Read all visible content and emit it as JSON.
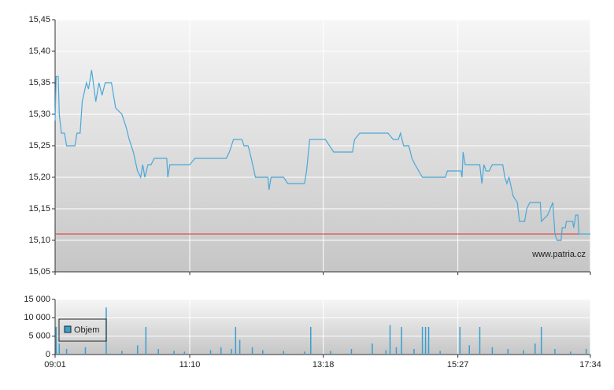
{
  "chart_data": [
    {
      "type": "line",
      "x": [
        "09:01",
        "09:02",
        "09:04",
        "09:05",
        "09:07",
        "09:10",
        "09:12",
        "09:20",
        "09:22",
        "09:25",
        "09:27",
        "09:31",
        "09:33",
        "09:36",
        "09:40",
        "09:43",
        "09:46",
        "09:49",
        "09:55",
        "09:59",
        "10:05",
        "10:09",
        "10:12",
        "10:16",
        "10:20",
        "10:23",
        "10:25",
        "10:27",
        "10:30",
        "10:33",
        "10:36",
        "10:48",
        "10:49",
        "10:51",
        "11:10",
        "11:15",
        "11:45",
        "11:48",
        "11:52",
        "12:00",
        "12:02",
        "12:06",
        "12:09",
        "12:13",
        "12:25",
        "12:26",
        "12:28",
        "12:40",
        "12:44",
        "13:00",
        "13:02",
        "13:05",
        "13:20",
        "13:28",
        "13:46",
        "13:48",
        "13:53",
        "14:20",
        "14:25",
        "14:30",
        "14:32",
        "14:35",
        "14:40",
        "14:43",
        "14:46",
        "14:53",
        "15:15",
        "15:17",
        "15:30",
        "15:31",
        "15:32",
        "15:34",
        "15:48",
        "15:50",
        "15:52",
        "15:54",
        "15:57",
        "16:00",
        "16:10",
        "16:12",
        "16:14",
        "16:16",
        "16:20",
        "16:24",
        "16:26",
        "16:31",
        "16:33",
        "16:36",
        "16:46",
        "16:47",
        "16:53",
        "16:58",
        "17:00",
        "17:02",
        "17:06",
        "17:07",
        "17:10",
        "17:11",
        "17:17",
        "17:18",
        "17:20",
        "17:22",
        "17:23",
        "17:34"
      ],
      "values": [
        15.29,
        15.36,
        15.36,
        15.3,
        15.27,
        15.27,
        15.25,
        15.25,
        15.27,
        15.27,
        15.32,
        15.35,
        15.34,
        15.37,
        15.32,
        15.35,
        15.33,
        15.35,
        15.35,
        15.31,
        15.3,
        15.28,
        15.26,
        15.24,
        15.21,
        15.2,
        15.22,
        15.2,
        15.22,
        15.22,
        15.23,
        15.23,
        15.2,
        15.22,
        15.22,
        15.23,
        15.23,
        15.24,
        15.26,
        15.26,
        15.25,
        15.25,
        15.23,
        15.2,
        15.2,
        15.18,
        15.2,
        15.2,
        15.19,
        15.19,
        15.21,
        15.26,
        15.26,
        15.24,
        15.24,
        15.26,
        15.27,
        15.27,
        15.26,
        15.26,
        15.27,
        15.25,
        15.25,
        15.23,
        15.22,
        15.2,
        15.2,
        15.21,
        15.21,
        15.2,
        15.24,
        15.22,
        15.22,
        15.19,
        15.22,
        15.21,
        15.21,
        15.22,
        15.22,
        15.2,
        15.19,
        15.2,
        15.17,
        15.16,
        15.13,
        15.13,
        15.15,
        15.16,
        15.16,
        15.13,
        15.14,
        15.16,
        15.11,
        15.1,
        15.1,
        15.12,
        15.12,
        15.13,
        15.13,
        15.12,
        15.14,
        15.14,
        15.11,
        15.11
      ],
      "color": "#4aa8d8",
      "reference_line": 15.11,
      "reference_color": "#e03030",
      "annotation": "www.patria.cz",
      "xlim": [
        "09:01",
        "17:34"
      ],
      "ylim": [
        15.05,
        15.45
      ],
      "yticks": [
        {
          "value": 15.05,
          "label": "15,05"
        },
        {
          "value": 15.1,
          "label": "15,10"
        },
        {
          "value": 15.15,
          "label": "15,15"
        },
        {
          "value": 15.2,
          "label": "15,20"
        },
        {
          "value": 15.25,
          "label": "15,25"
        },
        {
          "value": 15.3,
          "label": "15,30"
        },
        {
          "value": 15.35,
          "label": "15,35"
        },
        {
          "value": 15.4,
          "label": "15,40"
        },
        {
          "value": 15.45,
          "label": "15,45"
        }
      ],
      "xticks": [
        "09:01",
        "11:10",
        "13:18",
        "15:27",
        "17:34"
      ],
      "grid": true
    },
    {
      "type": "bar",
      "x": [
        "09:02",
        "09:05",
        "09:12",
        "09:30",
        "09:50",
        "10:05",
        "10:20",
        "10:28",
        "10:40",
        "10:55",
        "11:05",
        "11:30",
        "11:40",
        "11:50",
        "11:54",
        "11:58",
        "12:10",
        "12:20",
        "12:40",
        "13:00",
        "13:06",
        "13:25",
        "13:45",
        "14:05",
        "14:18",
        "14:22",
        "14:28",
        "14:33",
        "14:45",
        "14:53",
        "14:56",
        "14:59",
        "15:10",
        "15:29",
        "15:38",
        "15:48",
        "16:00",
        "16:15",
        "16:30",
        "16:41",
        "16:47",
        "17:00",
        "17:15",
        "17:30"
      ],
      "series": [
        {
          "name": "Objem",
          "color": "#3a9fd0",
          "values": [
            7500,
            3000,
            1500,
            2000,
            12800,
            1000,
            2500,
            7500,
            1500,
            1000,
            800,
            1200,
            2000,
            1500,
            7500,
            4000,
            2000,
            1200,
            1000,
            800,
            7500,
            1000,
            1500,
            3000,
            1200,
            8000,
            2000,
            7500,
            1500,
            7500,
            7500,
            7500,
            1000,
            7500,
            2500,
            7500,
            2000,
            1500,
            1200,
            3000,
            7500,
            1500,
            800,
            1500
          ]
        }
      ],
      "xlim": [
        "09:01",
        "17:34"
      ],
      "ylim": [
        0,
        15000
      ],
      "yticks": [
        0,
        {
          "value": 5000,
          "label": "5 000"
        },
        {
          "value": 10000,
          "label": "10 000"
        },
        {
          "value": 15000,
          "label": "15 000"
        }
      ],
      "xticks": [
        "09:01",
        "11:10",
        "13:18",
        "15:27",
        "17:34"
      ],
      "grid": true
    }
  ]
}
